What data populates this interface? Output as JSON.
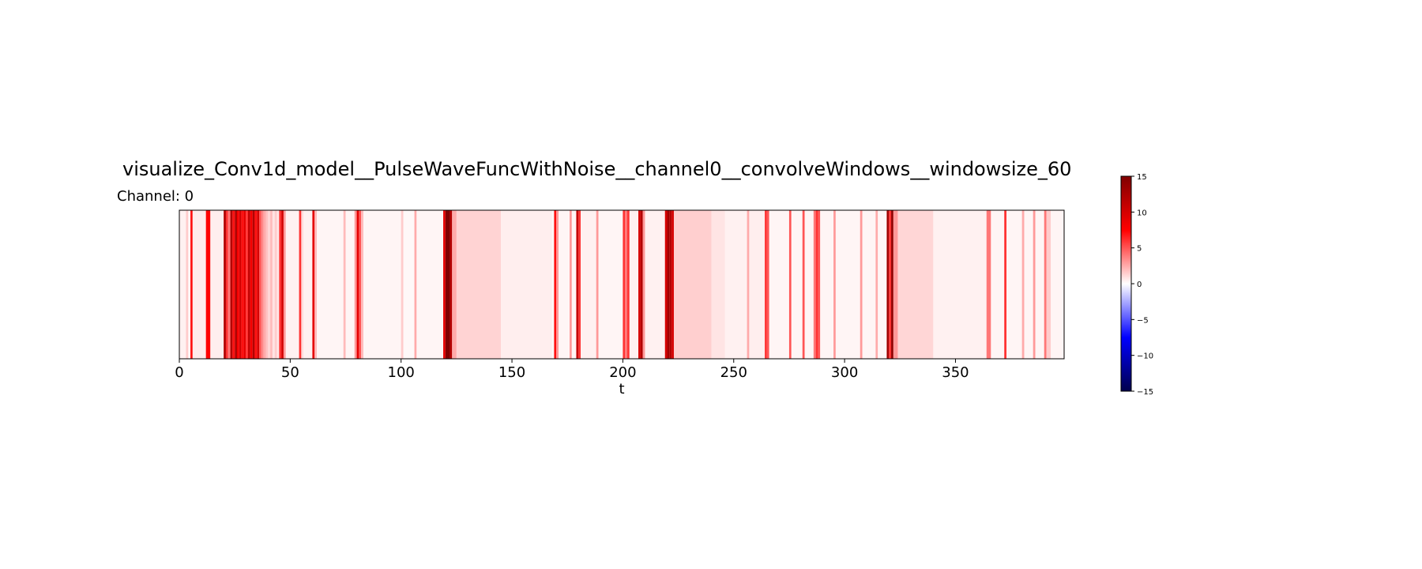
{
  "chart_data": {
    "type": "heatmap",
    "title": "visualize_Conv1d_model__PulseWaveFuncWithNoise__channel0__convolveWindows__windowsize_60",
    "subtitle": "Channel: 0",
    "xlabel": "t",
    "ylabel": "",
    "xlim": [
      0,
      399
    ],
    "x_ticks": [
      0,
      50,
      100,
      150,
      200,
      250,
      300,
      350
    ],
    "colormap": "seismic",
    "color_range": [
      -15,
      15
    ],
    "colorbar_ticks": [
      15,
      10,
      5,
      0,
      -5,
      -10,
      -15
    ],
    "colorbar_tick_labels": [
      "15",
      "10",
      "5",
      "0",
      "−5",
      "−10",
      "−15"
    ],
    "channel": 0,
    "grid": false,
    "baseline_value": 0.2,
    "segments": [
      [
        0,
        3,
        0.4
      ],
      [
        3,
        4,
        1.5
      ],
      [
        5,
        6,
        7
      ],
      [
        6,
        12,
        0.6
      ],
      [
        12,
        14,
        7.5
      ],
      [
        14,
        20,
        0.5
      ],
      [
        20,
        21,
        12
      ],
      [
        21,
        22,
        6
      ],
      [
        22,
        23,
        4
      ],
      [
        23,
        24,
        12
      ],
      [
        24,
        25,
        7
      ],
      [
        25,
        26,
        12
      ],
      [
        26,
        27,
        8
      ],
      [
        27,
        28,
        10
      ],
      [
        28,
        29,
        7
      ],
      [
        29,
        30,
        9
      ],
      [
        30,
        31,
        6
      ],
      [
        31,
        32,
        11
      ],
      [
        32,
        33,
        8
      ],
      [
        33,
        34,
        12
      ],
      [
        34,
        35,
        7
      ],
      [
        35,
        36,
        10
      ],
      [
        36,
        37,
        5
      ],
      [
        37,
        38,
        3.5
      ],
      [
        38,
        39,
        2.5
      ],
      [
        39,
        40,
        1.8
      ],
      [
        40,
        41,
        1.2
      ],
      [
        41,
        42,
        2
      ],
      [
        42,
        43,
        0.8
      ],
      [
        43,
        44,
        1.5
      ],
      [
        44,
        45,
        0.7
      ],
      [
        45,
        46,
        6
      ],
      [
        46,
        47,
        10
      ],
      [
        47,
        48,
        3
      ],
      [
        48,
        54,
        0.4
      ],
      [
        54,
        55,
        6
      ],
      [
        55,
        56,
        1
      ],
      [
        56,
        60,
        0.4
      ],
      [
        60,
        61,
        9
      ],
      [
        61,
        62,
        2
      ],
      [
        62,
        74,
        0.3
      ],
      [
        74,
        75,
        2
      ],
      [
        75,
        79,
        0.3
      ],
      [
        79,
        80,
        3
      ],
      [
        80,
        81,
        9
      ],
      [
        81,
        82,
        5
      ],
      [
        82,
        83,
        2
      ],
      [
        83,
        100,
        0.3
      ],
      [
        100,
        101,
        1.5
      ],
      [
        101,
        106,
        0.2
      ],
      [
        106,
        107,
        2.5
      ],
      [
        107,
        119,
        0.3
      ],
      [
        119,
        120,
        9
      ],
      [
        120,
        122,
        15
      ],
      [
        122,
        123,
        12
      ],
      [
        123,
        125,
        2.5
      ],
      [
        125,
        145,
        1.3
      ],
      [
        145,
        168,
        0.5
      ],
      [
        169,
        170,
        7
      ],
      [
        170,
        171,
        3
      ],
      [
        171,
        176,
        0.3
      ],
      [
        176,
        177,
        3
      ],
      [
        177,
        179,
        0.3
      ],
      [
        179,
        180,
        11
      ],
      [
        180,
        181,
        6
      ],
      [
        181,
        188,
        0.4
      ],
      [
        188,
        189,
        3
      ],
      [
        189,
        200,
        0.3
      ],
      [
        200,
        201,
        6
      ],
      [
        201,
        202,
        4
      ],
      [
        202,
        203,
        6
      ],
      [
        203,
        207,
        0.4
      ],
      [
        207,
        208,
        10
      ],
      [
        208,
        209,
        12
      ],
      [
        209,
        210,
        3
      ],
      [
        210,
        219,
        0.4
      ],
      [
        219,
        220,
        10
      ],
      [
        220,
        221,
        13
      ],
      [
        221,
        222,
        12
      ],
      [
        222,
        223,
        10
      ],
      [
        223,
        240,
        1.4
      ],
      [
        240,
        246,
        0.8
      ],
      [
        246,
        256,
        0.4
      ],
      [
        256,
        257,
        2.5
      ],
      [
        257,
        264,
        0.5
      ],
      [
        264,
        265,
        6
      ],
      [
        265,
        266,
        5
      ],
      [
        266,
        275,
        0.3
      ],
      [
        275,
        276,
        5
      ],
      [
        276,
        281,
        0.3
      ],
      [
        281,
        282,
        5
      ],
      [
        282,
        286,
        0.3
      ],
      [
        286,
        287,
        4
      ],
      [
        287,
        288,
        6
      ],
      [
        288,
        289,
        5
      ],
      [
        289,
        295,
        0.3
      ],
      [
        295,
        296,
        3
      ],
      [
        296,
        307,
        0.3
      ],
      [
        307,
        308,
        3
      ],
      [
        308,
        314,
        0.3
      ],
      [
        314,
        315,
        2.5
      ],
      [
        315,
        319,
        0.3
      ],
      [
        319,
        320,
        13
      ],
      [
        320,
        321,
        6
      ],
      [
        321,
        322,
        14
      ],
      [
        322,
        324,
        3
      ],
      [
        324,
        340,
        1.2
      ],
      [
        340,
        364,
        0.4
      ],
      [
        364,
        366,
        4
      ],
      [
        366,
        372,
        0.3
      ],
      [
        372,
        373,
        6
      ],
      [
        373,
        380,
        0.3
      ],
      [
        380,
        381,
        2.5
      ],
      [
        381,
        385,
        0.3
      ],
      [
        385,
        386,
        3
      ],
      [
        386,
        390,
        0.3
      ],
      [
        390,
        391,
        4
      ],
      [
        391,
        393,
        1.5
      ],
      [
        393,
        399,
        0.3
      ]
    ]
  }
}
